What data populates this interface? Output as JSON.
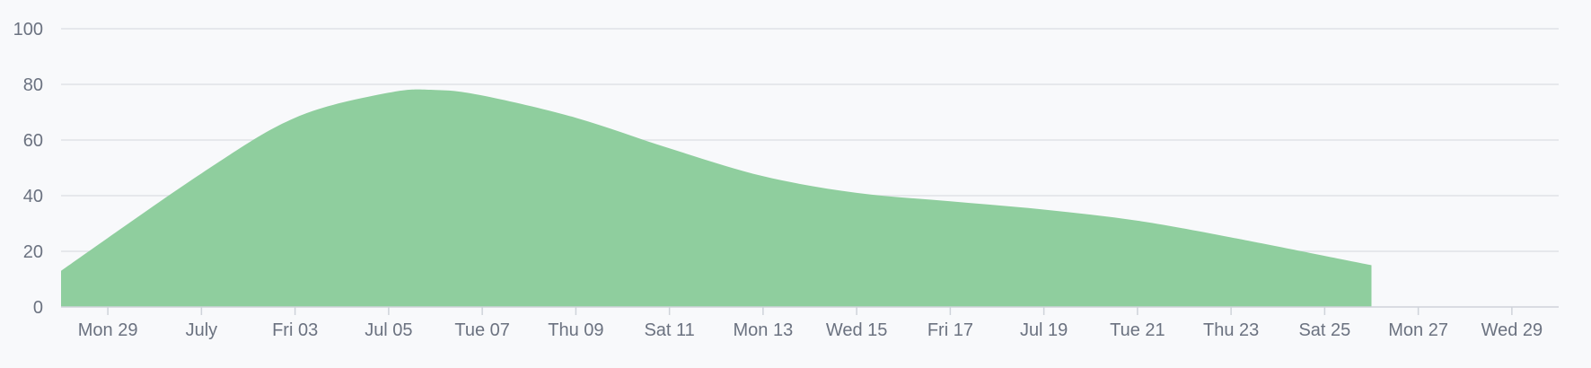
{
  "chart_data": {
    "type": "area",
    "title": "",
    "xlabel": "",
    "ylabel": "",
    "ylim": [
      0,
      100
    ],
    "yticks": [
      0,
      20,
      40,
      60,
      80,
      100
    ],
    "xlim": [
      "2020-06-28",
      "2020-07-30"
    ],
    "xticks": [
      {
        "date": "2020-06-29",
        "label": "Mon 29"
      },
      {
        "date": "2020-07-01",
        "label": "July"
      },
      {
        "date": "2020-07-03",
        "label": "Fri 03"
      },
      {
        "date": "2020-07-05",
        "label": "Jul 05"
      },
      {
        "date": "2020-07-07",
        "label": "Tue 07"
      },
      {
        "date": "2020-07-09",
        "label": "Thu 09"
      },
      {
        "date": "2020-07-11",
        "label": "Sat 11"
      },
      {
        "date": "2020-07-13",
        "label": "Mon 13"
      },
      {
        "date": "2020-07-15",
        "label": "Wed 15"
      },
      {
        "date": "2020-07-17",
        "label": "Fri 17"
      },
      {
        "date": "2020-07-19",
        "label": "Jul 19"
      },
      {
        "date": "2020-07-21",
        "label": "Tue 21"
      },
      {
        "date": "2020-07-23",
        "label": "Thu 23"
      },
      {
        "date": "2020-07-25",
        "label": "Sat 25"
      },
      {
        "date": "2020-07-27",
        "label": "Mon 27"
      },
      {
        "date": "2020-07-29",
        "label": "Wed 29"
      }
    ],
    "grid": true,
    "colors": {
      "area": "#8fce9e",
      "line": "#8fce9e"
    },
    "series": [
      {
        "x": [
          "2020-06-28",
          "2020-07-01",
          "2020-07-03",
          "2020-07-05",
          "2020-07-06",
          "2020-07-07",
          "2020-07-09",
          "2020-07-11",
          "2020-07-13",
          "2020-07-15",
          "2020-07-17",
          "2020-07-19",
          "2020-07-21",
          "2020-07-23",
          "2020-07-26"
        ],
        "values": [
          13,
          48,
          68,
          77,
          78,
          76,
          68,
          57,
          47,
          41,
          38,
          35,
          31,
          25,
          15
        ]
      }
    ]
  }
}
